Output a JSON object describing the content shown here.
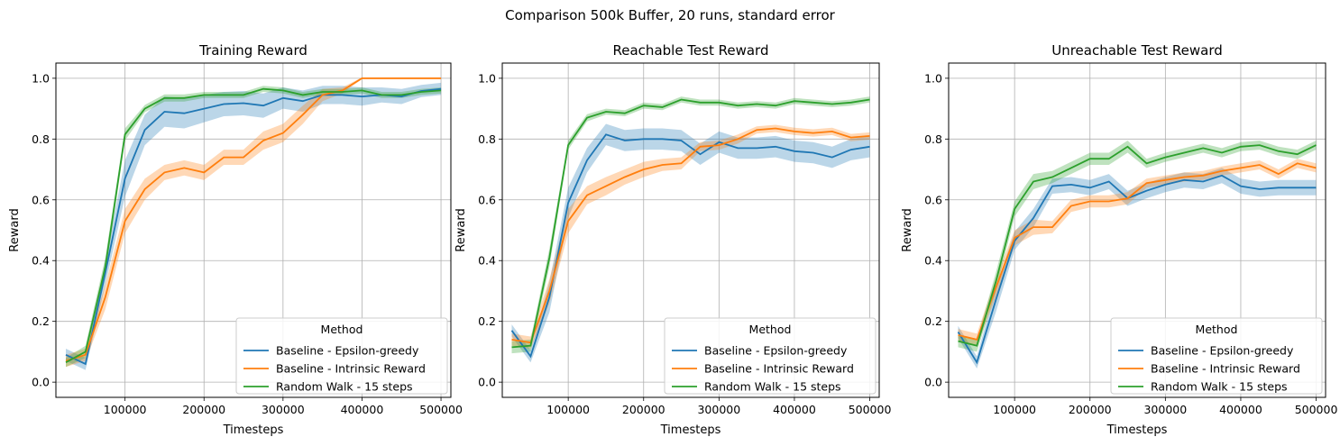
{
  "figure": {
    "suptitle": "Comparison 500k Buffer, 20 runs, standard error"
  },
  "chart_data": [
    {
      "type": "line",
      "title": "Training Reward",
      "xlabel": "Timesteps",
      "ylabel": "Reward",
      "xlim": [
        12500,
        512500
      ],
      "ylim": [
        -0.05,
        1.05
      ],
      "xticks": [
        100000,
        200000,
        300000,
        400000,
        500000
      ],
      "xtick_labels": [
        "100000",
        "200000",
        "300000",
        "400000",
        "500000"
      ],
      "yticks": [
        0.0,
        0.2,
        0.4,
        0.6,
        0.8,
        1.0
      ],
      "ytick_labels": [
        "0.0",
        "0.2",
        "0.4",
        "0.6",
        "0.8",
        "1.0"
      ],
      "grid": true,
      "legend": {
        "title": "Method",
        "placement": "lower-right"
      },
      "x": [
        25000,
        50000,
        75000,
        100000,
        125000,
        150000,
        175000,
        200000,
        225000,
        250000,
        275000,
        300000,
        325000,
        350000,
        375000,
        400000,
        425000,
        450000,
        475000,
        500000
      ],
      "series": [
        {
          "name": "Baseline - Epsilon-greedy",
          "color": "#1f77b4",
          "values": [
            0.09,
            0.06,
            0.36,
            0.67,
            0.83,
            0.89,
            0.885,
            0.9,
            0.915,
            0.918,
            0.91,
            0.935,
            0.925,
            0.945,
            0.945,
            0.94,
            0.945,
            0.94,
            0.958,
            0.965
          ],
          "err": [
            0.02,
            0.02,
            0.04,
            0.06,
            0.05,
            0.05,
            0.05,
            0.045,
            0.04,
            0.04,
            0.04,
            0.035,
            0.035,
            0.03,
            0.03,
            0.03,
            0.025,
            0.025,
            0.02,
            0.02
          ]
        },
        {
          "name": "Baseline - Intrinsic Reward",
          "color": "#ff7f0e",
          "values": [
            0.07,
            0.09,
            0.28,
            0.53,
            0.635,
            0.69,
            0.705,
            0.69,
            0.74,
            0.74,
            0.795,
            0.82,
            0.88,
            0.945,
            0.96,
            1.0,
            1.0,
            1.0,
            1.0,
            1.0
          ],
          "err": [
            0.02,
            0.02,
            0.04,
            0.04,
            0.035,
            0.025,
            0.025,
            0.025,
            0.025,
            0.025,
            0.03,
            0.03,
            0.03,
            0.02,
            0.01,
            0.003,
            0.003,
            0.003,
            0.003,
            0.003
          ]
        },
        {
          "name": "Random Walk - 15 steps",
          "color": "#2ca02c",
          "values": [
            0.065,
            0.1,
            0.38,
            0.815,
            0.9,
            0.935,
            0.935,
            0.945,
            0.945,
            0.945,
            0.965,
            0.96,
            0.945,
            0.955,
            0.955,
            0.96,
            0.945,
            0.945,
            0.955,
            0.96
          ],
          "err": [
            0.015,
            0.02,
            0.03,
            0.02,
            0.012,
            0.012,
            0.012,
            0.01,
            0.01,
            0.01,
            0.01,
            0.01,
            0.01,
            0.01,
            0.01,
            0.01,
            0.01,
            0.01,
            0.01,
            0.01
          ]
        }
      ]
    },
    {
      "type": "line",
      "title": "Reachable Test Reward",
      "xlabel": "Timesteps",
      "ylabel": "Reward",
      "xlim": [
        12500,
        512500
      ],
      "ylim": [
        -0.05,
        1.05
      ],
      "xticks": [
        100000,
        200000,
        300000,
        400000,
        500000
      ],
      "xtick_labels": [
        "100000",
        "200000",
        "300000",
        "400000",
        "500000"
      ],
      "yticks": [
        0.0,
        0.2,
        0.4,
        0.6,
        0.8,
        1.0
      ],
      "ytick_labels": [
        "0.0",
        "0.2",
        "0.4",
        "0.6",
        "0.8",
        "1.0"
      ],
      "grid": true,
      "legend": {
        "title": "Method",
        "placement": "lower-right"
      },
      "x": [
        25000,
        50000,
        75000,
        100000,
        125000,
        150000,
        175000,
        200000,
        225000,
        250000,
        275000,
        300000,
        325000,
        350000,
        375000,
        400000,
        425000,
        450000,
        475000,
        500000
      ],
      "series": [
        {
          "name": "Baseline - Epsilon-greedy",
          "color": "#1f77b4",
          "values": [
            0.17,
            0.085,
            0.28,
            0.59,
            0.73,
            0.815,
            0.795,
            0.8,
            0.8,
            0.795,
            0.75,
            0.79,
            0.77,
            0.77,
            0.775,
            0.76,
            0.755,
            0.74,
            0.765,
            0.775
          ],
          "err": [
            0.02,
            0.02,
            0.05,
            0.05,
            0.04,
            0.035,
            0.035,
            0.035,
            0.035,
            0.035,
            0.035,
            0.035,
            0.035,
            0.035,
            0.035,
            0.035,
            0.035,
            0.035,
            0.035,
            0.035
          ]
        },
        {
          "name": "Baseline - Intrinsic Reward",
          "color": "#ff7f0e",
          "values": [
            0.14,
            0.13,
            0.3,
            0.53,
            0.615,
            0.645,
            0.675,
            0.7,
            0.715,
            0.72,
            0.775,
            0.78,
            0.8,
            0.83,
            0.835,
            0.825,
            0.82,
            0.825,
            0.805,
            0.81
          ],
          "err": [
            0.02,
            0.02,
            0.04,
            0.04,
            0.03,
            0.03,
            0.025,
            0.025,
            0.02,
            0.02,
            0.015,
            0.015,
            0.015,
            0.012,
            0.012,
            0.012,
            0.012,
            0.012,
            0.012,
            0.012
          ]
        },
        {
          "name": "Random Walk - 15 steps",
          "color": "#2ca02c",
          "values": [
            0.115,
            0.12,
            0.41,
            0.78,
            0.87,
            0.89,
            0.885,
            0.91,
            0.905,
            0.93,
            0.92,
            0.92,
            0.91,
            0.915,
            0.91,
            0.925,
            0.92,
            0.915,
            0.92,
            0.93
          ],
          "err": [
            0.02,
            0.02,
            0.03,
            0.015,
            0.012,
            0.01,
            0.01,
            0.01,
            0.01,
            0.01,
            0.01,
            0.01,
            0.01,
            0.01,
            0.01,
            0.01,
            0.01,
            0.01,
            0.01,
            0.01
          ]
        }
      ]
    },
    {
      "type": "line",
      "title": "Unreachable Test Reward",
      "xlabel": "Timesteps",
      "ylabel": "Reward",
      "xlim": [
        12500,
        512500
      ],
      "ylim": [
        -0.05,
        1.05
      ],
      "xticks": [
        100000,
        200000,
        300000,
        400000,
        500000
      ],
      "xtick_labels": [
        "100000",
        "200000",
        "300000",
        "400000",
        "500000"
      ],
      "yticks": [
        0.0,
        0.2,
        0.4,
        0.6,
        0.8,
        1.0
      ],
      "ytick_labels": [
        "0.0",
        "0.2",
        "0.4",
        "0.6",
        "0.8",
        "1.0"
      ],
      "grid": true,
      "legend": {
        "title": "Method",
        "placement": "lower-right"
      },
      "x": [
        25000,
        50000,
        75000,
        100000,
        125000,
        150000,
        175000,
        200000,
        225000,
        250000,
        275000,
        300000,
        325000,
        350000,
        375000,
        400000,
        425000,
        450000,
        475000,
        500000
      ],
      "series": [
        {
          "name": "Baseline - Epsilon-greedy",
          "color": "#1f77b4",
          "values": [
            0.165,
            0.065,
            0.27,
            0.465,
            0.54,
            0.645,
            0.65,
            0.64,
            0.66,
            0.605,
            0.63,
            0.65,
            0.665,
            0.66,
            0.68,
            0.645,
            0.635,
            0.64,
            0.64,
            0.64
          ],
          "err": [
            0.02,
            0.02,
            0.04,
            0.03,
            0.03,
            0.025,
            0.025,
            0.025,
            0.025,
            0.025,
            0.025,
            0.025,
            0.025,
            0.025,
            0.025,
            0.025,
            0.025,
            0.025,
            0.025,
            0.025
          ]
        },
        {
          "name": "Baseline - Intrinsic Reward",
          "color": "#ff7f0e",
          "values": [
            0.155,
            0.14,
            0.31,
            0.475,
            0.51,
            0.51,
            0.58,
            0.595,
            0.595,
            0.605,
            0.655,
            0.665,
            0.675,
            0.68,
            0.695,
            0.705,
            0.715,
            0.685,
            0.72,
            0.705
          ],
          "err": [
            0.02,
            0.02,
            0.03,
            0.025,
            0.025,
            0.02,
            0.02,
            0.02,
            0.02,
            0.02,
            0.015,
            0.015,
            0.015,
            0.015,
            0.015,
            0.015,
            0.015,
            0.015,
            0.015,
            0.015
          ]
        },
        {
          "name": "Random Walk - 15 steps",
          "color": "#2ca02c",
          "values": [
            0.135,
            0.12,
            0.33,
            0.57,
            0.66,
            0.675,
            0.705,
            0.735,
            0.735,
            0.775,
            0.72,
            0.74,
            0.755,
            0.77,
            0.755,
            0.775,
            0.78,
            0.76,
            0.75,
            0.78
          ],
          "err": [
            0.02,
            0.02,
            0.03,
            0.025,
            0.025,
            0.02,
            0.02,
            0.02,
            0.02,
            0.02,
            0.015,
            0.015,
            0.015,
            0.015,
            0.015,
            0.015,
            0.015,
            0.015,
            0.015,
            0.015
          ]
        }
      ]
    }
  ]
}
